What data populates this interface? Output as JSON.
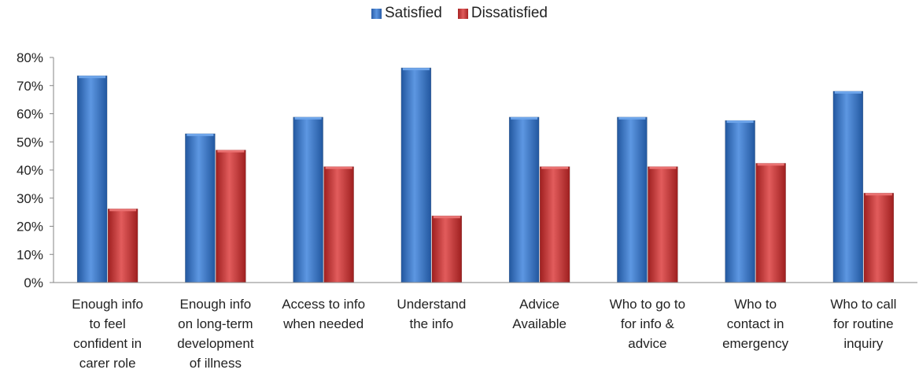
{
  "chart_data": {
    "type": "bar",
    "categories": [
      [
        "Enough info",
        "to feel",
        "confident in",
        "carer role"
      ],
      [
        "Enough info",
        "on long-term",
        "development",
        "of illness"
      ],
      [
        "Access to info",
        "when needed"
      ],
      [
        "Understand",
        "the info"
      ],
      [
        "Advice",
        "Available"
      ],
      [
        "Who to go to",
        "for info &",
        "advice"
      ],
      [
        "Who to",
        "contact in",
        "emergency"
      ],
      [
        "Who to call",
        "for routine",
        "inquiry"
      ]
    ],
    "series": [
      {
        "name": "Satisfied",
        "color": "#3a78c8",
        "values": [
          73.5,
          52.9,
          58.8,
          76.3,
          58.8,
          58.8,
          57.6,
          68.0
        ]
      },
      {
        "name": "Dissatisfied",
        "color": "#cc3333",
        "values": [
          26.2,
          47.1,
          41.2,
          23.7,
          41.2,
          41.2,
          42.4,
          31.8
        ]
      }
    ],
    "y_ticks": [
      "0%",
      "10%",
      "20%",
      "30%",
      "40%",
      "50%",
      "60%",
      "70%",
      "80%"
    ],
    "ylim": [
      0,
      80
    ],
    "legend_position": "top-center",
    "grid": false
  }
}
